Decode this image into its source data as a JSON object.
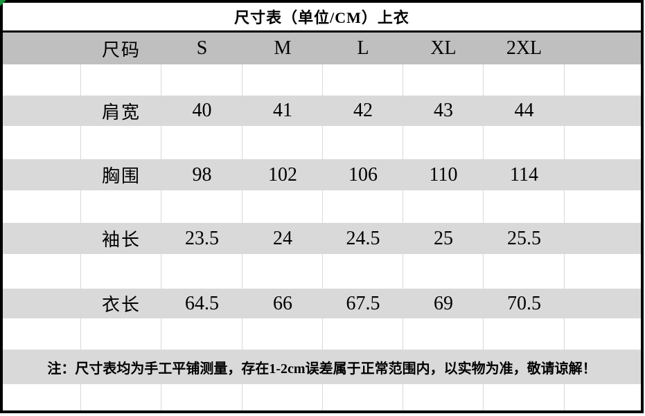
{
  "title": "尺寸表（单位/CM）上衣",
  "table": {
    "header": {
      "label": "尺码",
      "sizes": [
        "S",
        "M",
        "L",
        "XL",
        "2XL"
      ]
    },
    "rows": [
      {
        "label": "肩宽",
        "values": [
          "40",
          "41",
          "42",
          "43",
          "44"
        ]
      },
      {
        "label": "胸围",
        "values": [
          "98",
          "102",
          "106",
          "110",
          "114"
        ]
      },
      {
        "label": "袖长",
        "values": [
          "23.5",
          "24",
          "24.5",
          "25",
          "25.5"
        ]
      },
      {
        "label": "衣长",
        "values": [
          "64.5",
          "66",
          "67.5",
          "69",
          "70.5"
        ]
      }
    ]
  },
  "note": "注：尺寸表均为手工平铺测量，存在1-2cm误差属于正常范围内，以实物为准，敬请谅解！",
  "colors": {
    "header_bg": "#bfbfbf",
    "stripe_bg": "#d9d9d9",
    "grid_line": "#d9d9d9",
    "border": "#000000",
    "marker_green": "#19963c"
  }
}
